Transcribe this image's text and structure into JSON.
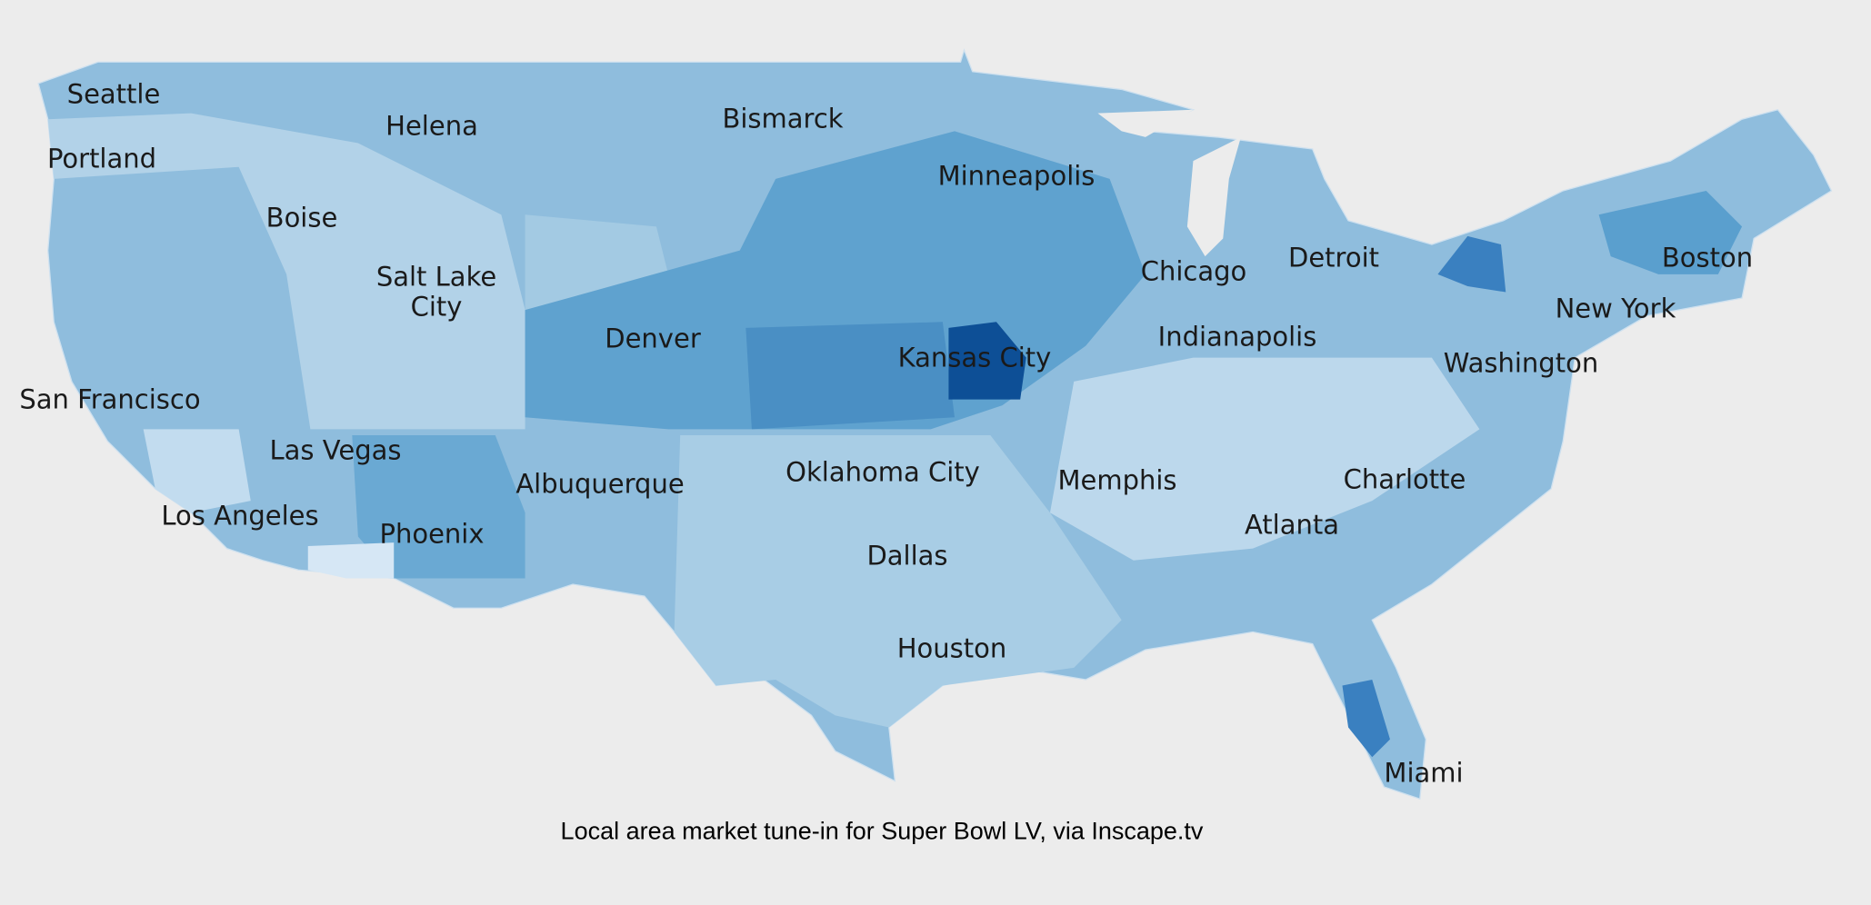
{
  "cities": [
    "Seattle",
    "Portland",
    "Helena",
    "Bismarck",
    "Minneapolis",
    "Boise",
    "Salt Lake City",
    "Denver",
    "Kansas City",
    "Chicago",
    "Detroit",
    "Boston",
    "New York",
    "Indianapolis",
    "Washington",
    "San Francisco",
    "Las Vegas",
    "Albuquerque",
    "Oklahoma City",
    "Memphis",
    "Charlotte",
    "Los Angeles",
    "Phoenix",
    "Atlanta",
    "Dallas",
    "Houston",
    "Miami"
  ],
  "caption": "Local area market tune-in for Super Bowl LV, via Inscape.tv"
}
